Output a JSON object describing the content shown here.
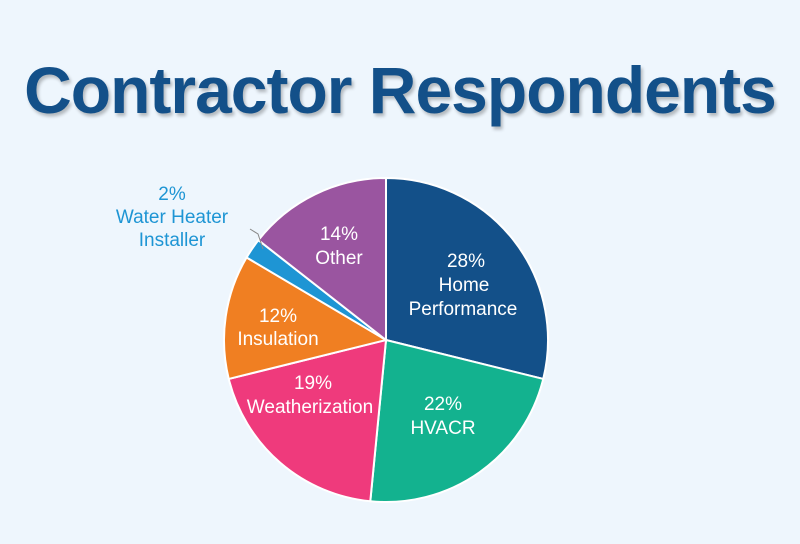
{
  "chart_data": {
    "type": "pie",
    "title": "Contractor Respondents",
    "categories": [
      "Home Performance",
      "HVACR",
      "Weatherization",
      "Insulation",
      "Water Heater Installer",
      "Other"
    ],
    "values": [
      28,
      22,
      19,
      12,
      2,
      14
    ],
    "unit": "%",
    "colors": [
      "#135089",
      "#13b28f",
      "#ef3a7c",
      "#f07f22",
      "#1e95d4",
      "#9a55a0"
    ],
    "labels": [
      {
        "pct": "28%",
        "name": "Home",
        "name2": "Performance"
      },
      {
        "pct": "22%",
        "name": "HVACR"
      },
      {
        "pct": "19%",
        "name": "Weatherization"
      },
      {
        "pct": "12%",
        "name": "Insulation"
      },
      {
        "pct": "2%",
        "name": "Water Heater",
        "name2": "Installer"
      },
      {
        "pct": "14%",
        "name": "Other"
      }
    ],
    "legend": "none (inline labels)"
  }
}
